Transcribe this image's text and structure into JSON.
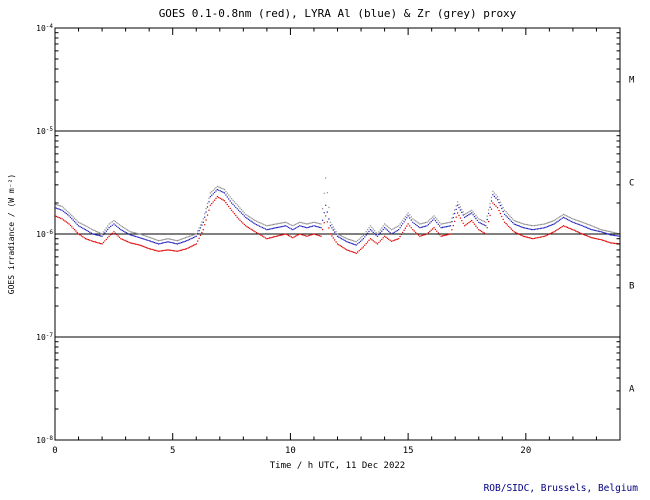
{
  "credit": "ROB/SIDC, Brussels, Belgium",
  "colors": {
    "background": "#ffffff",
    "axis": "#000000",
    "credit": "#000080",
    "red_series": "#dd0000",
    "blue_series": "#2222bb",
    "grey_series": "#909090"
  },
  "chart_data": {
    "type": "scatter",
    "title": "GOES 0.1-0.8nm (red), LYRA Al (blue) & Zr (grey) proxy",
    "xlabel": "Time / h UTC, 11 Dec 2022",
    "ylabel": "GOES irradiance / (W m⁻²)",
    "xlim": [
      0,
      24
    ],
    "x_major_ticks": [
      0,
      5,
      10,
      15,
      20
    ],
    "x_minor_step": 1,
    "y_scale": "log",
    "ylim_exp": [
      -8,
      -4
    ],
    "y_tick_exponents": [
      -4,
      -5,
      -6,
      -7,
      -8
    ],
    "hlines": [
      1e-05,
      1e-06,
      1e-07
    ],
    "class_labels": [
      {
        "label": "M",
        "center_exp": -4.5
      },
      {
        "label": "C",
        "center_exp": -5.5
      },
      {
        "label": "B",
        "center_exp": -6.5
      },
      {
        "label": "A",
        "center_exp": -7.5
      }
    ],
    "grid": false,
    "legend_position": "none",
    "x": [
      0,
      0.3,
      0.6,
      1.0,
      1.3,
      1.6,
      2.0,
      2.3,
      2.5,
      2.8,
      3.2,
      3.6,
      4.0,
      4.4,
      4.8,
      5.2,
      5.6,
      6.0,
      6.3,
      6.6,
      6.9,
      7.2,
      7.5,
      7.8,
      8.1,
      8.5,
      9.0,
      9.4,
      9.8,
      10.1,
      10.4,
      10.7,
      11.0,
      11.3,
      11.5,
      11.7,
      12.0,
      12.4,
      12.8,
      13.1,
      13.4,
      13.7,
      14.0,
      14.3,
      14.6,
      15.0,
      15.2,
      15.5,
      15.8,
      16.1,
      16.4,
      16.8,
      17.1,
      17.4,
      17.7,
      18.0,
      18.3,
      18.6,
      18.8,
      19.1,
      19.5,
      19.9,
      20.3,
      20.8,
      21.2,
      21.6,
      22.0,
      22.4,
      22.8,
      23.2,
      23.6,
      24.0
    ],
    "series": [
      {
        "name": "goes-0.1-0.8nm-red",
        "color": "#dd0000",
        "y": [
          1.5e-06,
          1.4e-06,
          1.25e-06,
          1e-06,
          9e-07,
          8.5e-07,
          8e-07,
          9.5e-07,
          1.05e-06,
          9e-07,
          8.2e-07,
          7.8e-07,
          7.2e-07,
          6.8e-07,
          7e-07,
          6.8e-07,
          7.2e-07,
          8e-07,
          1.1e-06,
          1.9e-06,
          2.3e-06,
          2.1e-06,
          1.7e-06,
          1.4e-06,
          1.2e-06,
          1.05e-06,
          9e-07,
          9.5e-07,
          1e-06,
          9.2e-07,
          1e-06,
          9.5e-07,
          1e-06,
          9.5e-07,
          1.5e-06,
          1e-06,
          8e-07,
          7e-07,
          6.5e-07,
          7.5e-07,
          9e-07,
          8e-07,
          9.5e-07,
          8.5e-07,
          9e-07,
          1.25e-06,
          1.1e-06,
          9.5e-07,
          1e-06,
          1.15e-06,
          9.5e-07,
          1e-06,
          1.6e-06,
          1.2e-06,
          1.35e-06,
          1.1e-06,
          1e-06,
          2e-06,
          1.8e-06,
          1.3e-06,
          1.05e-06,
          9.5e-07,
          9e-07,
          9.5e-07,
          1.05e-06,
          1.2e-06,
          1.1e-06,
          1e-06,
          9.2e-07,
          8.8e-07,
          8.2e-07,
          8e-07
        ]
      },
      {
        "name": "lyra-al-proxy-blue",
        "color": "#2222bb",
        "y": [
          1.8e-06,
          1.7e-06,
          1.5e-06,
          1.2e-06,
          1.1e-06,
          1e-06,
          9.5e-07,
          1.15e-06,
          1.25e-06,
          1.1e-06,
          9.8e-07,
          9.2e-07,
          8.6e-07,
          8e-07,
          8.4e-07,
          8e-07,
          8.6e-07,
          9.5e-07,
          1.3e-06,
          2.3e-06,
          2.7e-06,
          2.5e-06,
          2e-06,
          1.7e-06,
          1.45e-06,
          1.25e-06,
          1.1e-06,
          1.15e-06,
          1.2e-06,
          1.1e-06,
          1.2e-06,
          1.15e-06,
          1.2e-06,
          1.15e-06,
          1.9e-06,
          1.2e-06,
          9.5e-07,
          8.4e-07,
          7.8e-07,
          9e-07,
          1.1e-06,
          9.5e-07,
          1.15e-06,
          1e-06,
          1.1e-06,
          1.5e-06,
          1.3e-06,
          1.15e-06,
          1.2e-06,
          1.4e-06,
          1.15e-06,
          1.2e-06,
          1.9e-06,
          1.45e-06,
          1.6e-06,
          1.3e-06,
          1.2e-06,
          2.4e-06,
          2.15e-06,
          1.55e-06,
          1.25e-06,
          1.15e-06,
          1.1e-06,
          1.15e-06,
          1.25e-06,
          1.45e-06,
          1.3e-06,
          1.2e-06,
          1.1e-06,
          1.05e-06,
          9.8e-07,
          9.5e-07
        ]
      },
      {
        "name": "lyra-zr-proxy-grey",
        "color": "#909090",
        "y": [
          1.95e-06,
          1.85e-06,
          1.6e-06,
          1.3e-06,
          1.2e-06,
          1.1e-06,
          1e-06,
          1.25e-06,
          1.35e-06,
          1.2e-06,
          1.05e-06,
          1e-06,
          9.3e-07,
          8.6e-07,
          9e-07,
          8.6e-07,
          9.3e-07,
          1e-06,
          1.4e-06,
          2.5e-06,
          2.9e-06,
          2.7e-06,
          2.2e-06,
          1.85e-06,
          1.55e-06,
          1.35e-06,
          1.2e-06,
          1.25e-06,
          1.3e-06,
          1.2e-06,
          1.3e-06,
          1.25e-06,
          1.3e-06,
          1.25e-06,
          3.5e-06,
          1.3e-06,
          1e-06,
          9e-07,
          8.4e-07,
          9.7e-07,
          1.2e-06,
          1e-06,
          1.25e-06,
          1.1e-06,
          1.2e-06,
          1.6e-06,
          1.4e-06,
          1.25e-06,
          1.3e-06,
          1.5e-06,
          1.25e-06,
          1.3e-06,
          2.05e-06,
          1.55e-06,
          1.7e-06,
          1.4e-06,
          1.3e-06,
          2.6e-06,
          2.3e-06,
          1.7e-06,
          1.35e-06,
          1.25e-06,
          1.2e-06,
          1.25e-06,
          1.35e-06,
          1.55e-06,
          1.4e-06,
          1.3e-06,
          1.2e-06,
          1.1e-06,
          1.05e-06,
          1e-06
        ]
      }
    ]
  }
}
